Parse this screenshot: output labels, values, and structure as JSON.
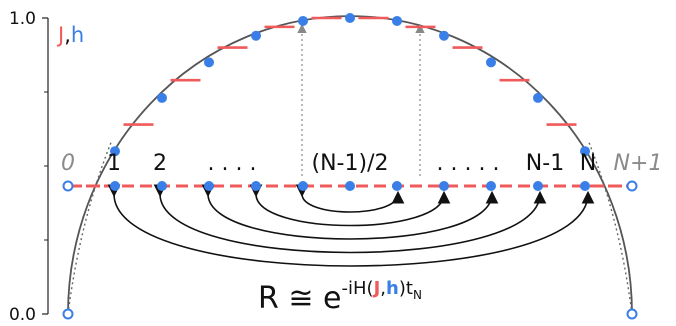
{
  "y_axis": {
    "top_tick_label": "1.0",
    "bottom_tick_label": "0.0"
  },
  "legend": {
    "j_label": "J",
    "comma": ",",
    "h_label": "h"
  },
  "sites": {
    "left_boundary": "0",
    "labels": [
      "1",
      "2",
      "(N-1)/2",
      "N-1",
      "N"
    ],
    "right_boundary": "N+1",
    "dots_left": ". . . .",
    "dots_right": ". . . . ."
  },
  "formula": {
    "lhs": "R ≅ e",
    "exp_pre": "-iH(",
    "exp_J": "J",
    "exp_comma": ",",
    "exp_h": "h",
    "exp_post": ")t",
    "exp_sub": "N"
  },
  "colors": {
    "J_bar": "#f05a5a",
    "h_dot": "#3a7ee8",
    "curve": "#555555",
    "axis": "#222222",
    "arrows": "#111111",
    "vertical_dotted": "#888888"
  },
  "chart_data": {
    "type": "scatter",
    "n_sites": 11,
    "h_values": [
      0.0,
      0.55,
      0.73,
      0.85,
      0.94,
      0.99,
      1.0,
      0.99,
      0.94,
      0.85,
      0.73,
      0.55,
      0.0
    ],
    "J_values": [
      0.64,
      0.79,
      0.9,
      0.97,
      1.0,
      1.0,
      0.97,
      0.9,
      0.79,
      0.64
    ],
    "ylim": [
      0.0,
      1.0
    ],
    "mirror_pairs": [
      [
        1,
        11
      ],
      [
        2,
        10
      ],
      [
        3,
        9
      ],
      [
        4,
        8
      ],
      [
        5,
        7
      ]
    ],
    "curve": "semicircle"
  }
}
